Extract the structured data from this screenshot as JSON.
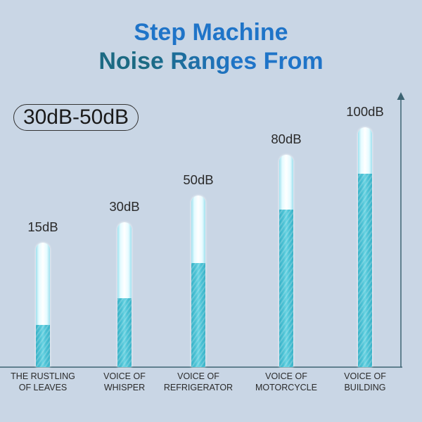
{
  "chart_data": {
    "type": "bar",
    "title_lines": [
      "Step Machine",
      "Noise Ranges From"
    ],
    "highlight_badge": "30dB-50dB",
    "categories": [
      "THE RUSTLING\nOF LEAVES",
      "VOICE OF\nWHISPER",
      "VOICE OF\nREFRIGERATOR",
      "VOICE OF\nMOTORCYCLE",
      "VOICE OF\nBUILDING"
    ],
    "values": [
      15,
      30,
      50,
      80,
      100
    ],
    "data_labels": [
      "15dB",
      "30dB",
      "50dB",
      "80dB",
      "100dB"
    ],
    "grid": false
  },
  "colors": {
    "background": "#c9d6e5",
    "title_blue": "#1f74c8",
    "title_teal": "#1c6a83",
    "bar_fill": "#4cc2d5",
    "bar_fill_dark": "#3ab2c7",
    "tube_edge": "#9fe1ef",
    "axis": "#3d6473",
    "text": "#222222"
  }
}
